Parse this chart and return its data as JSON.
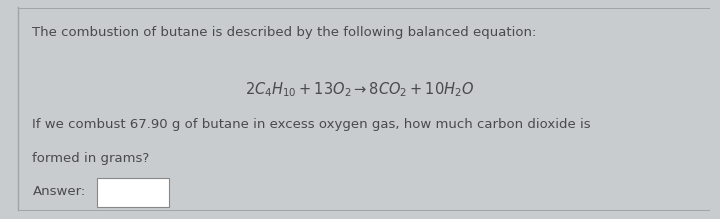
{
  "bg_color": "#c8cccf",
  "card_color": "#dde1e4",
  "border_left_color": "#a0a4a8",
  "line1": "The combustion of butane is described by the following balanced equation:",
  "equation": "$2C_4H_{10} + 13O_2 \\rightarrow 8CO_2 + 10H_2O$",
  "line2": "If we combust 67.90 g of butane in excess oxygen gas, how much carbon dioxide is",
  "line3": "formed in grams?",
  "answer_label": "Answer:",
  "text_color": "#4a4a4a",
  "font_size_body": 9.5,
  "font_size_eq": 10.5
}
